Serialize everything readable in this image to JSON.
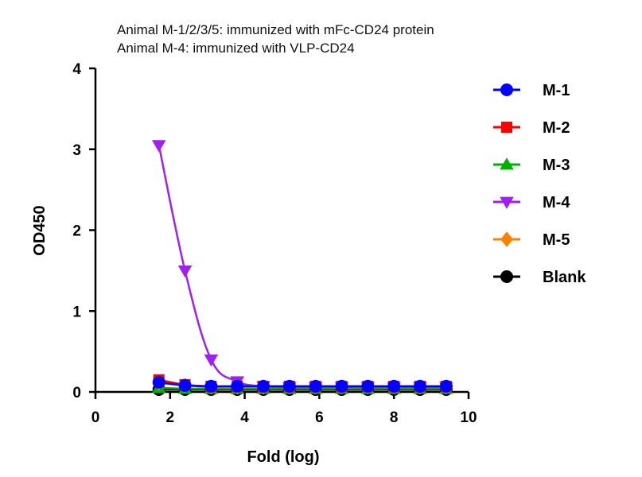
{
  "chart_data": {
    "type": "line",
    "subtitle_lines": [
      "Animal M-1/2/3/5: immunized with mFc-CD24 protein",
      "Animal M-4: immunized with VLP-CD24"
    ],
    "xlabel": "Fold (log)",
    "ylabel": "OD450",
    "xlim": [
      0,
      10
    ],
    "ylim": [
      0,
      4
    ],
    "xticks": [
      0,
      2,
      4,
      6,
      8,
      10
    ],
    "yticks": [
      0,
      1,
      2,
      3,
      4
    ],
    "grid": false,
    "legend_position": "right",
    "x": [
      1.7,
      2.4,
      3.1,
      3.8,
      4.5,
      5.2,
      5.9,
      6.6,
      7.3,
      8.0,
      8.7,
      9.4
    ],
    "series": [
      {
        "name": "M-1",
        "color": "#0000ff",
        "marker": "circle",
        "values": [
          0.12,
          0.08,
          0.07,
          0.07,
          0.07,
          0.07,
          0.07,
          0.07,
          0.07,
          0.07,
          0.07,
          0.07
        ]
      },
      {
        "name": "M-2",
        "color": "#ff0000",
        "marker": "square",
        "values": [
          0.15,
          0.09,
          0.07,
          0.07,
          0.07,
          0.07,
          0.07,
          0.07,
          0.07,
          0.07,
          0.07,
          0.07
        ]
      },
      {
        "name": "M-3",
        "color": "#00b000",
        "marker": "triangle-up",
        "values": [
          0.05,
          0.04,
          0.04,
          0.04,
          0.04,
          0.04,
          0.04,
          0.04,
          0.04,
          0.04,
          0.04,
          0.04
        ]
      },
      {
        "name": "M-4",
        "color": "#a020f0",
        "marker": "triangle-down",
        "values": [
          3.05,
          1.5,
          0.4,
          0.13,
          0.07,
          0.06,
          0.06,
          0.06,
          0.06,
          0.06,
          0.06,
          0.06
        ]
      },
      {
        "name": "M-5",
        "color": "#ff8000",
        "marker": "diamond",
        "values": [
          0.11,
          0.08,
          0.06,
          0.06,
          0.06,
          0.06,
          0.06,
          0.06,
          0.06,
          0.06,
          0.06,
          0.06
        ]
      },
      {
        "name": "Blank",
        "color": "#000000",
        "marker": "circle",
        "values": [
          0.03,
          0.03,
          0.03,
          0.03,
          0.03,
          0.03,
          0.03,
          0.03,
          0.03,
          0.03,
          0.03,
          0.03
        ]
      }
    ]
  }
}
